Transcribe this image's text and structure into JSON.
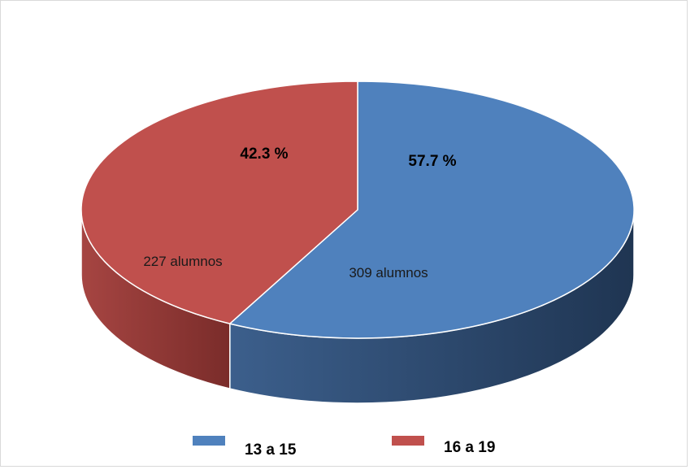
{
  "chart_data": {
    "type": "pie",
    "is_3d": true,
    "start_angle_deg": 0,
    "direction": "clockwise",
    "legend_position": "bottom",
    "slices": [
      {
        "name": "13 a 15",
        "value": 309,
        "percent_label": "57.7 %",
        "count_label": "309 alumnos",
        "color": "#4f81bd",
        "side_color_light": "#3c5f8c",
        "side_color_dark": "#1f3552"
      },
      {
        "name": "16 a 19",
        "value": 227,
        "percent_label": "42.3 %",
        "count_label": "227 alumnos",
        "color": "#c0504d",
        "side_color_light": "#a64542",
        "side_color_dark": "#7a2c2a"
      }
    ]
  }
}
